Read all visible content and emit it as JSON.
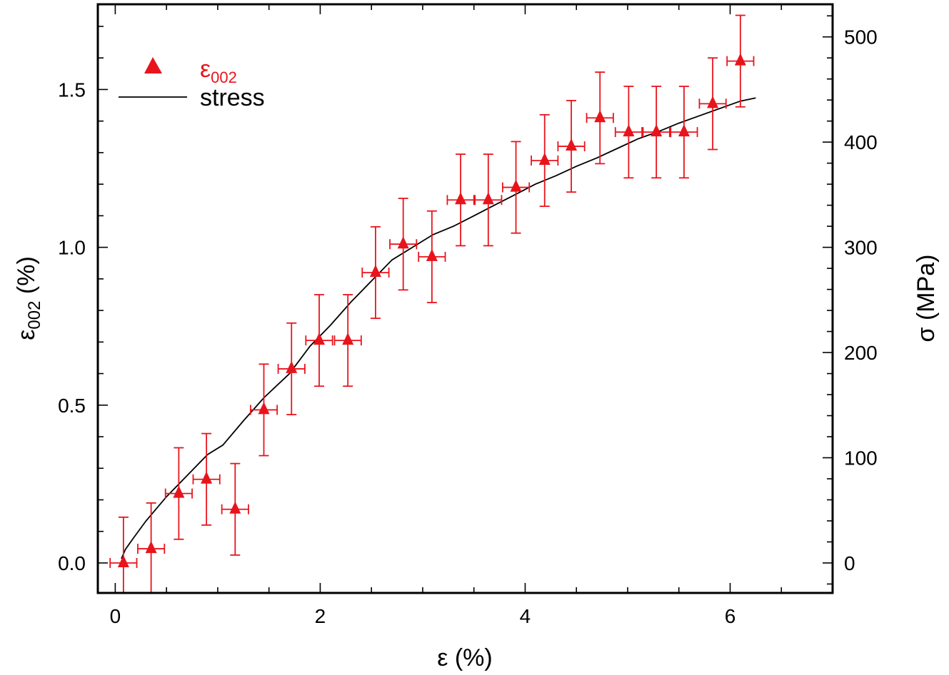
{
  "chart_data": {
    "type": "scatter",
    "colors": {
      "series_a": "#e8141c",
      "series_b": "#000000"
    },
    "xlabel": "ε (%)",
    "ylabel": {
      "main": "ε",
      "sub": "002",
      "suffix": " (%)"
    },
    "y2label": "σ (MPa)",
    "xlim": [
      -0.17,
      7.0
    ],
    "ylim": [
      -0.095,
      1.77
    ],
    "y2lim": [
      -28.5,
      531
    ],
    "x_ticks": [
      0,
      2,
      4,
      6
    ],
    "x_tick_labels": [
      "0",
      "2",
      "4",
      "6"
    ],
    "y_ticks": [
      0.0,
      0.5,
      1.0,
      1.5
    ],
    "y_tick_labels": [
      "0.0",
      "0.5",
      "1.0",
      "1.5"
    ],
    "y2_ticks": [
      0,
      100,
      200,
      300,
      400,
      500
    ],
    "y2_tick_labels": [
      "0",
      "100",
      "200",
      "300",
      "400",
      "500"
    ],
    "legend_position": "top-left",
    "legend": [
      {
        "name": {
          "main": "ε",
          "sub": "002"
        },
        "marker": "triangle",
        "color": "#e8141c"
      },
      {
        "name": "stress",
        "marker": "line",
        "color": "#000000"
      }
    ],
    "series": [
      {
        "name": "ε002",
        "axis": "left",
        "points": [
          {
            "x": 0.08,
            "y": 0.0,
            "xerr": 0.13,
            "yerr": 0.145
          },
          {
            "x": 0.35,
            "y": 0.045,
            "xerr": 0.13,
            "yerr": 0.145
          },
          {
            "x": 0.62,
            "y": 0.22,
            "xerr": 0.13,
            "yerr": 0.145
          },
          {
            "x": 0.89,
            "y": 0.265,
            "xerr": 0.13,
            "yerr": 0.145
          },
          {
            "x": 1.17,
            "y": 0.17,
            "xerr": 0.13,
            "yerr": 0.145
          },
          {
            "x": 1.45,
            "y": 0.485,
            "xerr": 0.13,
            "yerr": 0.145
          },
          {
            "x": 1.72,
            "y": 0.615,
            "xerr": 0.13,
            "yerr": 0.145
          },
          {
            "x": 1.99,
            "y": 0.705,
            "xerr": 0.13,
            "yerr": 0.145
          },
          {
            "x": 2.27,
            "y": 0.705,
            "xerr": 0.13,
            "yerr": 0.145
          },
          {
            "x": 2.54,
            "y": 0.92,
            "xerr": 0.13,
            "yerr": 0.145
          },
          {
            "x": 2.81,
            "y": 1.01,
            "xerr": 0.13,
            "yerr": 0.145
          },
          {
            "x": 3.09,
            "y": 0.97,
            "xerr": 0.13,
            "yerr": 0.145
          },
          {
            "x": 3.37,
            "y": 1.15,
            "xerr": 0.13,
            "yerr": 0.145
          },
          {
            "x": 3.64,
            "y": 1.15,
            "xerr": 0.13,
            "yerr": 0.145
          },
          {
            "x": 3.91,
            "y": 1.19,
            "xerr": 0.13,
            "yerr": 0.145
          },
          {
            "x": 4.19,
            "y": 1.275,
            "xerr": 0.13,
            "yerr": 0.145
          },
          {
            "x": 4.45,
            "y": 1.32,
            "xerr": 0.13,
            "yerr": 0.145
          },
          {
            "x": 4.73,
            "y": 1.41,
            "xerr": 0.13,
            "yerr": 0.145
          },
          {
            "x": 5.01,
            "y": 1.365,
            "xerr": 0.13,
            "yerr": 0.145
          },
          {
            "x": 5.28,
            "y": 1.365,
            "xerr": 0.13,
            "yerr": 0.145
          },
          {
            "x": 5.55,
            "y": 1.365,
            "xerr": 0.13,
            "yerr": 0.145
          },
          {
            "x": 5.83,
            "y": 1.455,
            "xerr": 0.13,
            "yerr": 0.145
          },
          {
            "x": 6.1,
            "y": 1.59,
            "xerr": 0.13,
            "yerr": 0.145
          }
        ]
      },
      {
        "name": "stress",
        "axis": "right",
        "x": [
          0.06,
          0.1,
          0.18,
          0.3,
          0.5,
          0.7,
          0.9,
          1.05,
          1.25,
          1.45,
          1.7,
          1.9,
          2.1,
          2.3,
          2.5,
          2.7,
          2.9,
          3.1,
          3.3,
          3.5,
          3.7,
          3.9,
          4.1,
          4.3,
          4.5,
          4.7,
          4.9,
          5.1,
          5.3,
          5.5,
          5.7,
          5.9,
          6.1,
          6.25
        ],
        "y": [
          4,
          13,
          24,
          40,
          63,
          83,
          103,
          112,
          135,
          157,
          180,
          206,
          226,
          248,
          268,
          288,
          300,
          312,
          320,
          330,
          340,
          350,
          360,
          368,
          377,
          385,
          394,
          403,
          410,
          418,
          425,
          432,
          439,
          442
        ]
      }
    ]
  }
}
